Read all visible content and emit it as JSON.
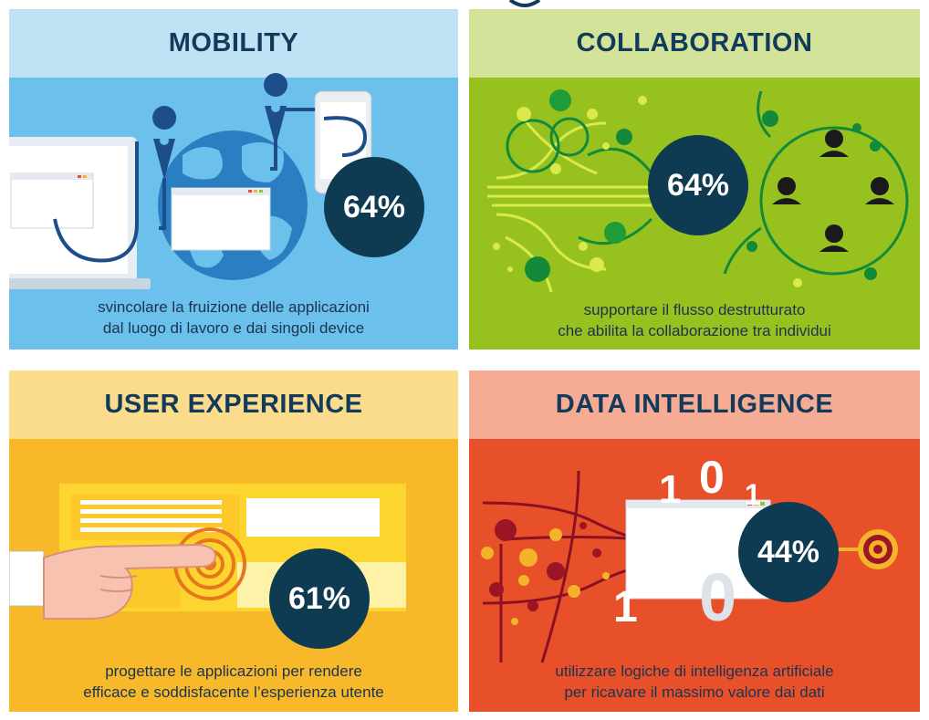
{
  "panels": [
    {
      "title": "MOBILITY",
      "percent": "64%",
      "caption_lines": [
        "svincolare la fruizione delle applicazioni",
        "dal luogo di lavoro e dai singoli device"
      ],
      "colors": {
        "header": "#bfe3f4",
        "body": "#6cc0ec"
      }
    },
    {
      "title": "COLLABORATION",
      "percent": "64%",
      "caption_lines": [
        "supportare il flusso destrutturato",
        "che abilita la collaborazione tra individui"
      ],
      "colors": {
        "header": "#d3e39a",
        "body": "#97c11f"
      }
    },
    {
      "title": "USER EXPERIENCE",
      "percent": "61%",
      "caption_lines": [
        "progettare le applicazioni per rendere",
        "efficace e soddisfacente l’esperienza utente"
      ],
      "colors": {
        "header": "#fbdb8c",
        "body": "#f7b92a"
      }
    },
    {
      "title": "DATA INTELLIGENCE",
      "percent": "44%",
      "caption_lines": [
        "utilizzare logiche di intelligenza artificiale",
        "per ricavare il massimo valore dai dati"
      ],
      "colors": {
        "header": "#f5ab94",
        "body": "#e8502a"
      }
    }
  ],
  "binary_digits": [
    "1",
    "0",
    "1",
    "1",
    "0"
  ]
}
